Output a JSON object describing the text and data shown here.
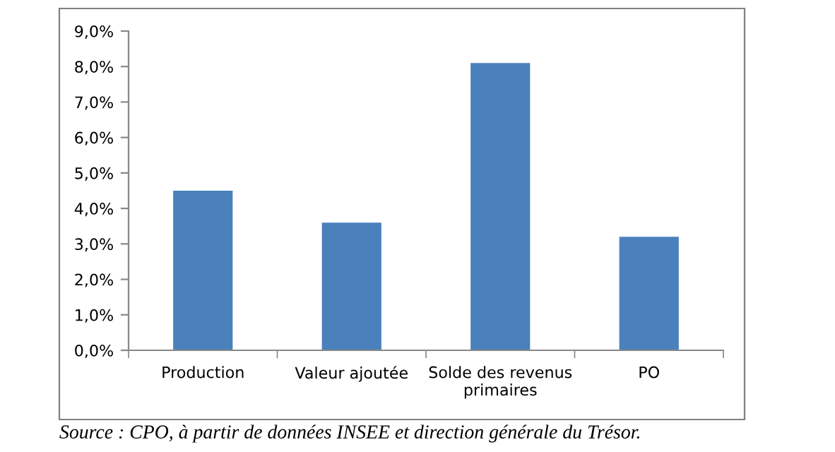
{
  "chart_data": {
    "type": "bar",
    "categories": [
      "Production",
      "Valeur ajoutée",
      "Solde des revenus\nprimaires",
      "PO"
    ],
    "values": [
      4.5,
      3.6,
      8.1,
      3.2
    ],
    "color": "#4a81bc",
    "ylim": [
      0,
      9
    ],
    "yticks": [
      {
        "value": 0,
        "label": "0,0%"
      },
      {
        "value": 1,
        "label": "1,0%"
      },
      {
        "value": 2,
        "label": "2,0%"
      },
      {
        "value": 3,
        "label": "3,0%"
      },
      {
        "value": 4,
        "label": "4,0%"
      },
      {
        "value": 5,
        "label": "5,0%"
      },
      {
        "value": 6,
        "label": "6,0%"
      },
      {
        "value": 7,
        "label": "7,0%"
      },
      {
        "value": 8,
        "label": "8,0%"
      },
      {
        "value": 9,
        "label": "9,0%"
      }
    ],
    "grid": false,
    "annotations": [
      "Source : CPO, à partir de données INSEE et direction générale du Trésor."
    ]
  }
}
